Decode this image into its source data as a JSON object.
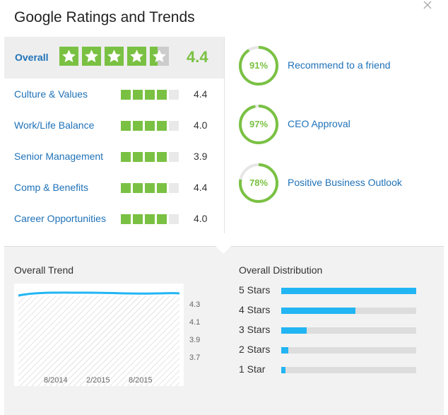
{
  "header": {
    "title": "Google Ratings and Trends"
  },
  "overall": {
    "label": "Overall",
    "value": "4.4",
    "rating": 4.4,
    "star_color": "#7ac143"
  },
  "ratings": [
    {
      "label": "Culture & Values",
      "value": "4.4",
      "segments": 4.4
    },
    {
      "label": "Work/Life Balance",
      "value": "4.0",
      "segments": 4.0
    },
    {
      "label": "Senior Management",
      "value": "3.9",
      "segments": 3.9
    },
    {
      "label": "Comp & Benefits",
      "value": "4.4",
      "segments": 4.4
    },
    {
      "label": "Career Opportunities",
      "value": "4.0",
      "segments": 4.0
    }
  ],
  "circles": [
    {
      "pct": "91%",
      "fraction": 0.91,
      "label": "Recommend to a friend"
    },
    {
      "pct": "97%",
      "fraction": 0.97,
      "label": "CEO Approval"
    },
    {
      "pct": "78%",
      "fraction": 0.78,
      "label": "Positive Business Outlook"
    }
  ],
  "trend": {
    "title": "Overall Trend",
    "y_ticks": [
      "4.3",
      "4.1",
      "3.9",
      "3.7"
    ],
    "x_ticks": [
      "8/2014",
      "2/2015",
      "8/2015"
    ],
    "line_color": "#22b5f3"
  },
  "distribution": {
    "title": "Overall Distribution",
    "bars": [
      {
        "label": "5 Stars",
        "fraction": 1.0
      },
      {
        "label": "4 Stars",
        "fraction": 0.55
      },
      {
        "label": "3 Stars",
        "fraction": 0.19
      },
      {
        "label": "2 Stars",
        "fraction": 0.05
      },
      {
        "label": "1 Star",
        "fraction": 0.03
      }
    ],
    "bar_color": "#22b5f3"
  }
}
